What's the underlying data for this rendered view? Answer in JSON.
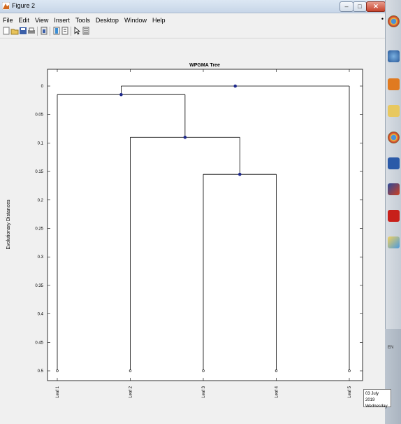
{
  "window": {
    "title": "Figure 2"
  },
  "menu": [
    "File",
    "Edit",
    "View",
    "Insert",
    "Tools",
    "Desktop",
    "Window",
    "Help"
  ],
  "toolbar": {
    "icons": [
      "new-figure-icon",
      "open-file-icon",
      "save-icon",
      "print-icon",
      "link-icon",
      "insert-colorbar-icon",
      "insert-legend-icon",
      "pointer-icon",
      "plot-tools-icon"
    ]
  },
  "colors": {
    "node": "#1f2a8c",
    "line": "#000000",
    "title_bar": "#c7d6e8",
    "close": "#c7442e"
  },
  "chart_data": {
    "type": "dendrogram",
    "title": "WPGMA Tree",
    "ylabel": "Evolutionary Distances",
    "xlabel": "",
    "y_reversed": true,
    "ylim": [
      0,
      0.52
    ],
    "yticks": [
      "0",
      "0.05",
      "0.1",
      "0.15",
      "0.2",
      "0.25",
      "0.3",
      "0.35",
      "0.4",
      "0.45",
      "0.5"
    ],
    "yticks_values": [
      0,
      0.05,
      0.1,
      0.15,
      0.2,
      0.25,
      0.3,
      0.35,
      0.4,
      0.45,
      0.5
    ],
    "leaves": [
      "Leaf 1",
      "Leaf 2",
      "Leaf 3",
      "Leaf 4",
      "Leaf 5"
    ],
    "leaf_height": 0.5,
    "links": [
      {
        "join": [
          3,
          4
        ],
        "height": 0.155
      },
      {
        "join": [
          2,
          "n1"
        ],
        "height": 0.09
      },
      {
        "join": [
          1,
          "n2"
        ],
        "height": 0.015
      },
      {
        "join": [
          "n3",
          5
        ],
        "height": 0.0
      }
    ],
    "grid": false
  },
  "taskbar": {
    "icons": [
      "chrome-icon",
      "network-icon",
      "outlook-icon",
      "folder-icon",
      "chrome-icon",
      "word-icon",
      "matlab-icon",
      "acrobat-icon",
      "paint-icon"
    ],
    "lang": "EN"
  },
  "tooltip": {
    "date": "03 July 2019",
    "day": "Wednesday"
  }
}
